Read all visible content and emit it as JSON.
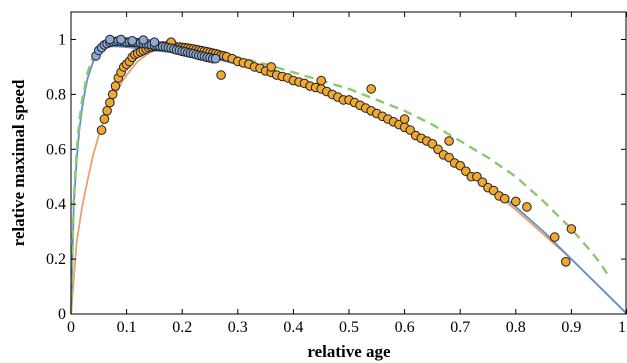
{
  "chart_data": {
    "type": "scatter",
    "xlabel": "relative age",
    "ylabel": "relative maximal speed",
    "xlim": [
      0,
      1
    ],
    "ylim": [
      0,
      1.1
    ],
    "x_ticks": [
      0,
      0.1,
      0.2,
      0.3,
      0.4,
      0.5,
      0.6,
      0.7,
      0.8,
      0.9,
      1
    ],
    "x_tick_labels": [
      "0",
      "0.1",
      "0.2",
      "0.3",
      "0.4",
      "0.5",
      "0.6",
      "0.7",
      "0.8",
      "0.9",
      "1"
    ],
    "y_ticks": [
      0,
      0.2,
      0.4,
      0.6,
      0.8,
      1
    ],
    "y_tick_labels": [
      "0",
      "0.2",
      "0.4",
      "0.6",
      "0.8",
      "1"
    ],
    "grid": false,
    "colors": {
      "orange_points": "#f0a830",
      "blue_points": "#8aa8d8",
      "orange_curve": "#e8a070",
      "blue_curve": "#5b8fd0",
      "green_dashed": "#8cc86c",
      "marker_edge": "#222222"
    },
    "series": [
      {
        "kind": "points",
        "color_key": "orange_points",
        "x": [
          0.055,
          0.06,
          0.065,
          0.07,
          0.075,
          0.08,
          0.085,
          0.09,
          0.095,
          0.1,
          0.105,
          0.11,
          0.115,
          0.12,
          0.125,
          0.13,
          0.135,
          0.14,
          0.145,
          0.15,
          0.155,
          0.16,
          0.165,
          0.17,
          0.175,
          0.18,
          0.185,
          0.19,
          0.195,
          0.2,
          0.205,
          0.21,
          0.215,
          0.22,
          0.225,
          0.23,
          0.235,
          0.24,
          0.245,
          0.25,
          0.255,
          0.26,
          0.265,
          0.27,
          0.275,
          0.28,
          0.29,
          0.3,
          0.31,
          0.32,
          0.33,
          0.34,
          0.35,
          0.36,
          0.37,
          0.38,
          0.39,
          0.4,
          0.41,
          0.42,
          0.43,
          0.44,
          0.45,
          0.46,
          0.47,
          0.48,
          0.49,
          0.5,
          0.51,
          0.52,
          0.53,
          0.54,
          0.55,
          0.56,
          0.57,
          0.58,
          0.59,
          0.6,
          0.61,
          0.62,
          0.63,
          0.64,
          0.65,
          0.66,
          0.67,
          0.68,
          0.69,
          0.7,
          0.71,
          0.72,
          0.73,
          0.74,
          0.75,
          0.76,
          0.77,
          0.78,
          0.8,
          0.82,
          0.87,
          0.89,
          0.9,
          0.18,
          0.27,
          0.36,
          0.45,
          0.54,
          0.6,
          0.68
        ],
        "y": [
          0.67,
          0.71,
          0.74,
          0.77,
          0.8,
          0.83,
          0.86,
          0.88,
          0.9,
          0.91,
          0.92,
          0.935,
          0.945,
          0.95,
          0.955,
          0.96,
          0.965,
          0.97,
          0.972,
          0.974,
          0.975,
          0.975,
          0.976,
          0.976,
          0.975,
          0.975,
          0.974,
          0.973,
          0.972,
          0.971,
          0.97,
          0.969,
          0.967,
          0.965,
          0.963,
          0.961,
          0.959,
          0.957,
          0.955,
          0.953,
          0.95,
          0.948,
          0.945,
          0.942,
          0.94,
          0.937,
          0.93,
          0.92,
          0.915,
          0.91,
          0.9,
          0.895,
          0.885,
          0.88,
          0.87,
          0.865,
          0.86,
          0.85,
          0.845,
          0.84,
          0.83,
          0.825,
          0.82,
          0.81,
          0.8,
          0.79,
          0.78,
          0.78,
          0.77,
          0.76,
          0.75,
          0.74,
          0.73,
          0.72,
          0.71,
          0.7,
          0.69,
          0.68,
          0.67,
          0.65,
          0.64,
          0.63,
          0.62,
          0.6,
          0.58,
          0.57,
          0.55,
          0.54,
          0.52,
          0.5,
          0.5,
          0.48,
          0.46,
          0.45,
          0.43,
          0.42,
          0.41,
          0.39,
          0.28,
          0.19,
          0.31,
          0.99,
          0.87,
          0.9,
          0.85,
          0.82,
          0.71,
          0.63
        ]
      },
      {
        "kind": "points",
        "color_key": "blue_points",
        "x": [
          0.045,
          0.05,
          0.055,
          0.06,
          0.065,
          0.07,
          0.075,
          0.08,
          0.085,
          0.09,
          0.095,
          0.1,
          0.105,
          0.11,
          0.115,
          0.12,
          0.125,
          0.13,
          0.135,
          0.14,
          0.145,
          0.15,
          0.155,
          0.16,
          0.165,
          0.17,
          0.175,
          0.18,
          0.185,
          0.19,
          0.195,
          0.2,
          0.205,
          0.21,
          0.215,
          0.22,
          0.225,
          0.23,
          0.235,
          0.24,
          0.245,
          0.25,
          0.255,
          0.26,
          0.07,
          0.09,
          0.11,
          0.13,
          0.15
        ],
        "y": [
          0.94,
          0.96,
          0.97,
          0.98,
          0.985,
          0.99,
          0.992,
          0.993,
          0.994,
          0.993,
          0.992,
          0.99,
          0.99,
          0.99,
          0.989,
          0.988,
          0.987,
          0.985,
          0.984,
          0.983,
          0.98,
          0.978,
          0.977,
          0.975,
          0.974,
          0.972,
          0.97,
          0.968,
          0.965,
          0.962,
          0.96,
          0.957,
          0.955,
          0.952,
          0.95,
          0.948,
          0.945,
          0.942,
          0.94,
          0.938,
          0.935,
          0.933,
          0.93,
          0.93,
          1.0,
          1.0,
          0.995,
          0.998,
          0.99
        ]
      }
    ],
    "curves": [
      {
        "kind": "line",
        "color_key": "orange_curve",
        "x": [
          0.0,
          0.01,
          0.02,
          0.03,
          0.04,
          0.05,
          0.06,
          0.07,
          0.08,
          0.09,
          0.1,
          0.12,
          0.14,
          0.16,
          0.18,
          0.2,
          0.25,
          0.3,
          0.35,
          0.4,
          0.45,
          0.5,
          0.55,
          0.6,
          0.65,
          0.7,
          0.75,
          0.8,
          0.85,
          0.9,
          0.95,
          1.0
        ],
        "y": [
          0.0,
          0.26,
          0.39,
          0.49,
          0.58,
          0.65,
          0.71,
          0.76,
          0.8,
          0.84,
          0.87,
          0.92,
          0.95,
          0.97,
          0.975,
          0.975,
          0.96,
          0.93,
          0.9,
          0.86,
          0.82,
          0.78,
          0.73,
          0.67,
          0.61,
          0.54,
          0.46,
          0.38,
          0.29,
          0.2,
          0.1,
          0.0
        ]
      },
      {
        "kind": "line",
        "color_key": "blue_curve",
        "x": [
          0.0,
          0.005,
          0.01,
          0.015,
          0.02,
          0.025,
          0.03,
          0.04,
          0.05,
          0.06,
          0.07,
          0.08,
          0.1,
          0.12,
          0.15,
          0.2,
          0.25,
          0.3,
          0.35,
          0.4,
          0.45,
          0.5,
          0.55,
          0.6,
          0.65,
          0.7,
          0.75,
          0.8,
          0.85,
          0.9,
          0.95,
          1.0
        ],
        "y": [
          0.0,
          0.4,
          0.56,
          0.67,
          0.75,
          0.81,
          0.86,
          0.92,
          0.95,
          0.97,
          0.975,
          0.975,
          0.972,
          0.968,
          0.96,
          0.95,
          0.935,
          0.91,
          0.88,
          0.85,
          0.81,
          0.77,
          0.72,
          0.67,
          0.61,
          0.54,
          0.47,
          0.39,
          0.3,
          0.2,
          0.1,
          0.0
        ]
      },
      {
        "kind": "dashed",
        "color_key": "green_dashed",
        "x": [
          0.0,
          0.005,
          0.01,
          0.015,
          0.02,
          0.03,
          0.04,
          0.05,
          0.06,
          0.08,
          0.1,
          0.15,
          0.2,
          0.25,
          0.3,
          0.35,
          0.4,
          0.45,
          0.5,
          0.55,
          0.6,
          0.65,
          0.7,
          0.75,
          0.8,
          0.85,
          0.9,
          0.93,
          0.95,
          0.97
        ],
        "y": [
          0.0,
          0.42,
          0.59,
          0.7,
          0.78,
          0.88,
          0.94,
          0.97,
          0.98,
          0.985,
          0.985,
          0.98,
          0.97,
          0.955,
          0.935,
          0.91,
          0.88,
          0.85,
          0.82,
          0.78,
          0.74,
          0.69,
          0.63,
          0.57,
          0.5,
          0.41,
          0.31,
          0.24,
          0.19,
          0.13
        ]
      }
    ]
  }
}
